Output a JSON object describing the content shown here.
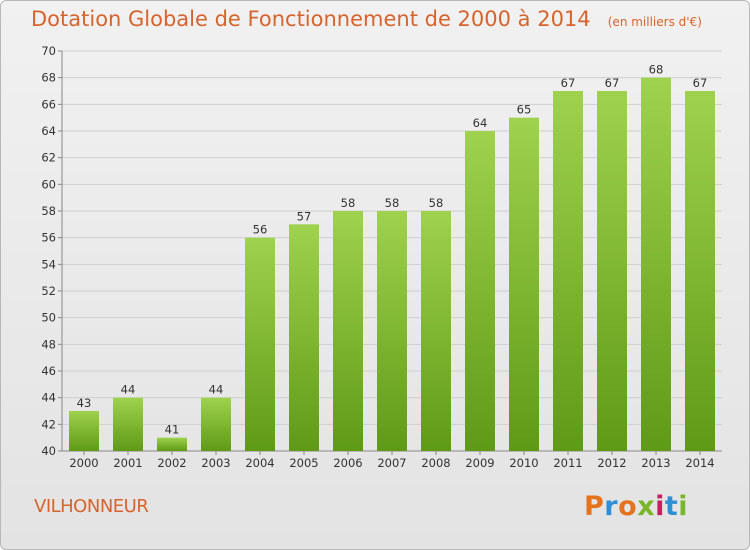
{
  "header": {
    "title": "Dotation Globale de Fonctionnement de 2000 à 2014",
    "unit_note": "(en milliers d'€)"
  },
  "footer": {
    "commune": "VILHONNEUR",
    "logo_text": "Proxiti"
  },
  "colors": {
    "accent": "#d7642c",
    "bar_top": "#9fd24e",
    "bar_bottom": "#5f9a16",
    "grid": "#cfcfcf",
    "label_text": "#333333"
  },
  "chart_data": {
    "type": "bar",
    "categories": [
      "2000",
      "2001",
      "2002",
      "2003",
      "2004",
      "2005",
      "2006",
      "2007",
      "2008",
      "2009",
      "2010",
      "2011",
      "2012",
      "2013",
      "2014"
    ],
    "values": [
      43,
      44,
      41,
      44,
      56,
      57,
      58,
      58,
      58,
      64,
      65,
      67,
      67,
      68,
      67
    ],
    "ylim": [
      40,
      70
    ],
    "yticks": [
      40,
      42,
      44,
      46,
      48,
      50,
      52,
      54,
      56,
      58,
      60,
      62,
      64,
      66,
      68,
      70
    ],
    "grid": true,
    "data_labels": true
  }
}
